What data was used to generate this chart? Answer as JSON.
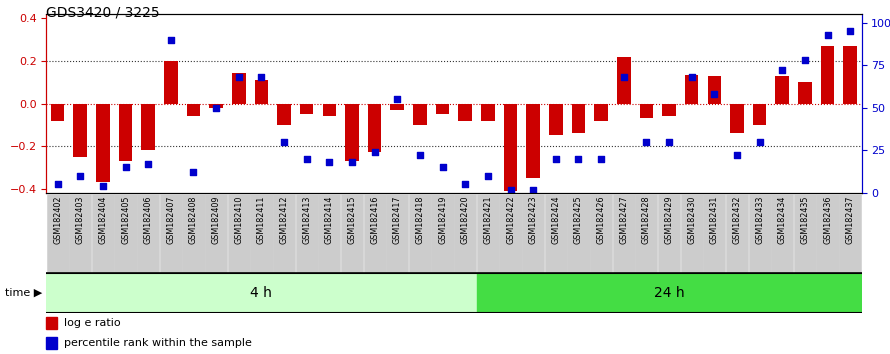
{
  "title": "GDS3420 / 3225",
  "samples": [
    "GSM182402",
    "GSM182403",
    "GSM182404",
    "GSM182405",
    "GSM182406",
    "GSM182407",
    "GSM182408",
    "GSM182409",
    "GSM182410",
    "GSM182411",
    "GSM182412",
    "GSM182413",
    "GSM182414",
    "GSM182415",
    "GSM182416",
    "GSM182417",
    "GSM182418",
    "GSM182419",
    "GSM182420",
    "GSM182421",
    "GSM182422",
    "GSM182423",
    "GSM182424",
    "GSM182425",
    "GSM182426",
    "GSM182427",
    "GSM182428",
    "GSM182429",
    "GSM182430",
    "GSM182431",
    "GSM182432",
    "GSM182433",
    "GSM182434",
    "GSM182435",
    "GSM182436",
    "GSM182437"
  ],
  "log_ratio": [
    -0.08,
    -0.25,
    -0.37,
    -0.27,
    -0.22,
    0.2,
    -0.06,
    -0.02,
    0.145,
    0.11,
    -0.1,
    -0.05,
    -0.06,
    -0.27,
    -0.23,
    -0.03,
    -0.1,
    -0.05,
    -0.08,
    -0.08,
    -0.41,
    -0.35,
    -0.15,
    -0.14,
    -0.08,
    0.22,
    -0.07,
    -0.06,
    0.135,
    0.13,
    -0.14,
    -0.1,
    0.13,
    0.1,
    0.27,
    0.27
  ],
  "percentile": [
    5,
    10,
    4,
    15,
    17,
    90,
    12,
    50,
    68,
    68,
    30,
    20,
    18,
    18,
    24,
    55,
    22,
    15,
    5,
    10,
    2,
    2,
    20,
    20,
    20,
    68,
    30,
    30,
    68,
    58,
    22,
    30,
    72,
    78,
    93,
    95
  ],
  "n_group1": 19,
  "group1_label": "4 h",
  "group2_label": "24 h",
  "bar_color": "#CC0000",
  "dot_color": "#0000CC",
  "ylim_left": [
    -0.42,
    0.42
  ],
  "ylim_right": [
    0,
    105
  ],
  "yticks_left": [
    -0.4,
    -0.2,
    0.0,
    0.2,
    0.4
  ],
  "yticks_right": [
    0,
    25,
    50,
    75,
    100
  ],
  "hlines": [
    -0.2,
    0.0,
    0.2
  ],
  "legend_log": "log e ratio",
  "legend_pct": "percentile rank within the sample",
  "time_label": "time",
  "bg_color_group1": "#CCFFCC",
  "bg_color_group2": "#44DD44",
  "left_axis_color": "#CC0000",
  "right_axis_color": "#0000CC",
  "tick_bg_color": "#CCCCCC"
}
